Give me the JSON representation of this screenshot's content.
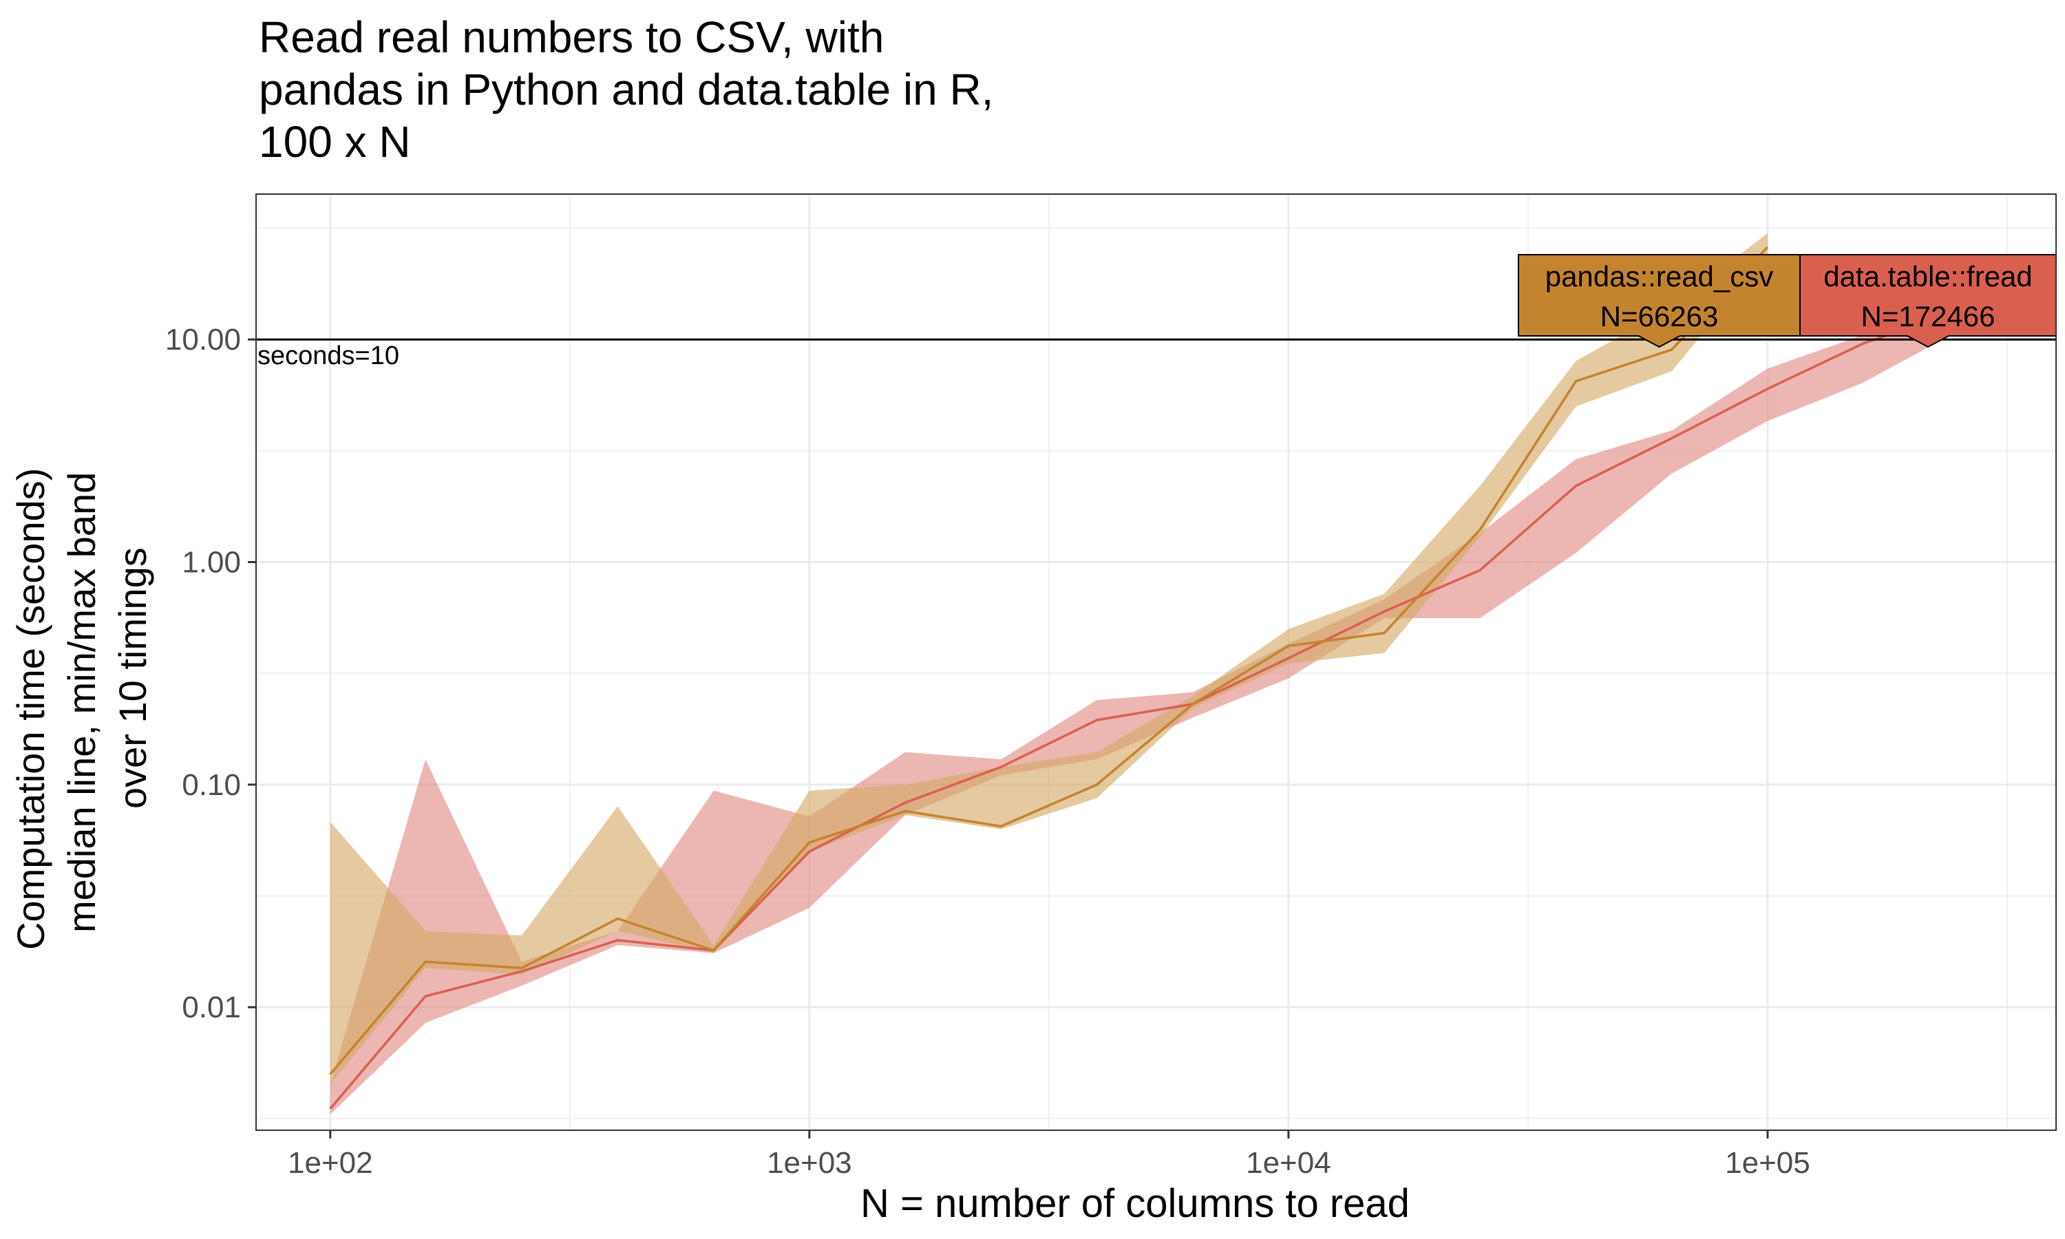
{
  "chart_data": {
    "type": "line",
    "title_lines": [
      "Read real numbers to CSV, with",
      "pandas in Python and data.table in R,",
      "100 x N"
    ],
    "xlabel": "N = number of columns to read",
    "ylabel_lines": [
      "Computation time (seconds)",
      "median line, min/max band",
      "over 10 timings"
    ],
    "x_scale": "log10",
    "y_scale": "log10",
    "xlim": [
      70,
      400000
    ],
    "ylim": [
      0.0028,
      45
    ],
    "x_ticks": [
      100,
      1000,
      10000,
      100000
    ],
    "x_tick_labels": [
      "1e+02",
      "1e+03",
      "1e+04",
      "1e+05"
    ],
    "y_ticks": [
      0.01,
      0.1,
      1,
      10
    ],
    "y_tick_labels": [
      "0.01",
      "0.10",
      "1.00",
      "10.00"
    ],
    "grid": true,
    "reference_line": {
      "y": 10,
      "label": "seconds=10"
    },
    "series": [
      {
        "name": "data.table::fread",
        "color": "#d9604f",
        "band_color": "#e08a82",
        "x": [
          100,
          158,
          251,
          398,
          631,
          1000,
          1585,
          2512,
          3981,
          6310,
          10000,
          15849,
          25119,
          39811,
          63096,
          100000,
          158489,
          251189
        ],
        "median": [
          0.0035,
          0.0112,
          0.0145,
          0.02,
          0.018,
          0.05,
          0.083,
          0.12,
          0.195,
          0.23,
          0.37,
          0.6,
          0.92,
          2.2,
          3.6,
          6.0,
          9.6,
          13.5
        ],
        "min": [
          0.0033,
          0.0085,
          0.0125,
          0.019,
          0.0175,
          0.028,
          0.073,
          0.11,
          0.13,
          0.2,
          0.3,
          0.56,
          0.56,
          1.1,
          2.5,
          4.3,
          6.4,
          11.0
        ],
        "max": [
          0.0045,
          0.13,
          0.016,
          0.022,
          0.094,
          0.072,
          0.14,
          0.13,
          0.24,
          0.26,
          0.43,
          0.68,
          1.35,
          2.9,
          3.9,
          7.4,
          10.5,
          16.0
        ],
        "label_box": {
          "name": "data.table::fread",
          "text": "N=172466",
          "fill": "#d9604f"
        }
      },
      {
        "name": "pandas::read_csv",
        "color": "#c4832e",
        "band_color": "#d5a866",
        "x": [
          100,
          158,
          251,
          398,
          631,
          1000,
          1585,
          2512,
          3981,
          6310,
          10000,
          15849,
          25119,
          39811,
          63096,
          100000
        ],
        "median": [
          0.005,
          0.016,
          0.015,
          0.025,
          0.018,
          0.055,
          0.076,
          0.065,
          0.1,
          0.23,
          0.42,
          0.48,
          1.4,
          6.5,
          9.0,
          26.0
        ],
        "min": [
          0.0045,
          0.015,
          0.014,
          0.022,
          0.0175,
          0.05,
          0.073,
          0.063,
          0.087,
          0.22,
          0.35,
          0.39,
          1.3,
          5.0,
          7.2,
          24.0
        ],
        "max": [
          0.068,
          0.022,
          0.021,
          0.08,
          0.019,
          0.094,
          0.1,
          0.12,
          0.14,
          0.25,
          0.5,
          0.72,
          2.2,
          8.0,
          14.0,
          30.0
        ],
        "label_box": {
          "name": "pandas::read_csv",
          "text": "N=66263",
          "fill": "#c4832e"
        }
      }
    ]
  }
}
